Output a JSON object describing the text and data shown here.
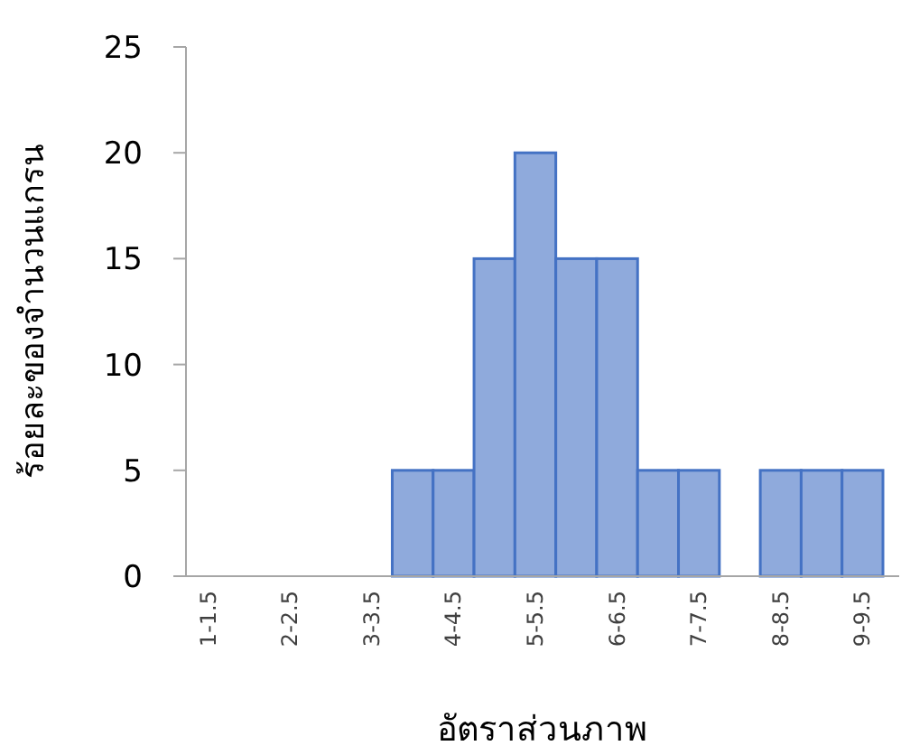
{
  "chart_data": {
    "type": "bar",
    "xlabel": "อัตราส่วนภาพ",
    "ylabel": "ร้อยละของจำนวนแกรน",
    "categories": [
      "1-1.5",
      null,
      "2-2.5",
      null,
      "3-3.5",
      null,
      "4-4.5",
      null,
      "5-5.5",
      null,
      "6-6.5",
      null,
      "7-7.5",
      null,
      "8-8.5",
      null,
      "9-9.5"
    ],
    "values": [
      0,
      0,
      0,
      0,
      0,
      5,
      5,
      15,
      20,
      15,
      15,
      5,
      5,
      0,
      5,
      5,
      5
    ],
    "color": "#8faadc",
    "ylim": [
      0,
      25
    ],
    "yticks": [
      0,
      5,
      10,
      15,
      20,
      25
    ],
    "grid": false
  }
}
